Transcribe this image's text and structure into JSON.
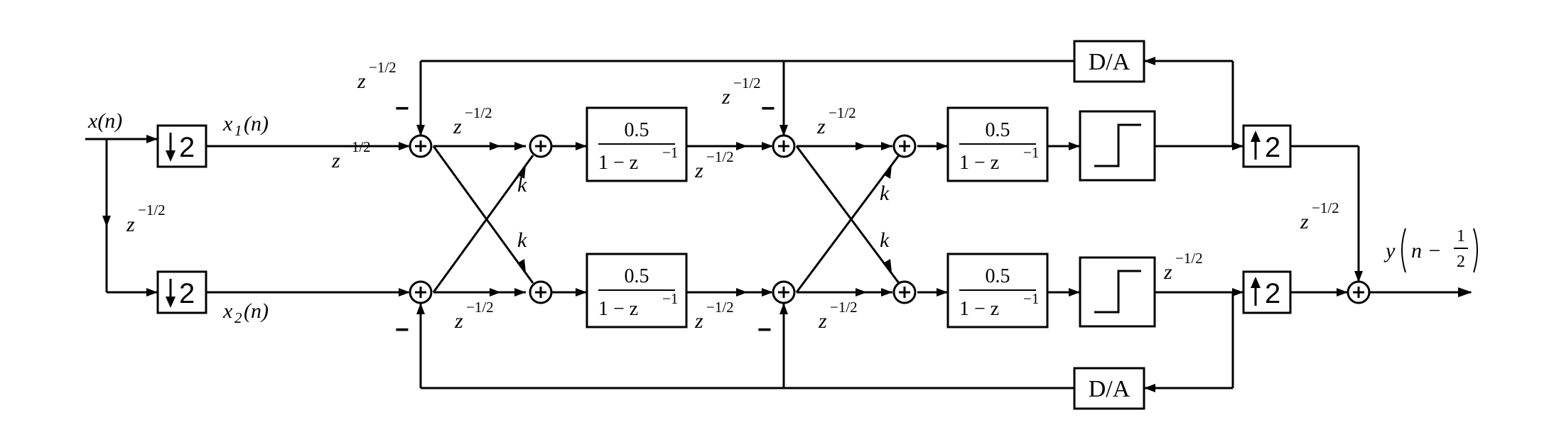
{
  "labels": {
    "input": "x(n)",
    "x1": "x",
    "x1_sub": "1",
    "x1_arg": "(n)",
    "x2": "x",
    "x2_sub": "2",
    "x2_arg": "(n)",
    "output": "y",
    "output_arg": "n −",
    "output_frac_num": "1",
    "output_frac_den": "2",
    "gain": "k",
    "delay_base": "z",
    "delay_exp": "−1/2",
    "minus": "−"
  },
  "blocks": {
    "downsample_factor": "2",
    "upsample_factor": "2",
    "integrator_num": "0.5",
    "integrator_den_a": "1 − z",
    "integrator_den_exp": "−1",
    "dac": "D/A"
  }
}
